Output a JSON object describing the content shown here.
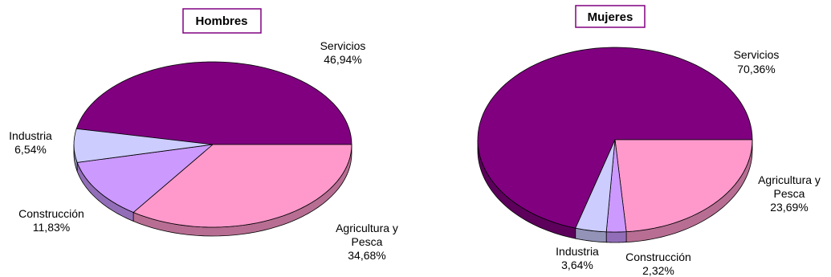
{
  "chart_data": [
    {
      "type": "pie",
      "title": "Hombres",
      "colors": {
        "border": "#800080",
        "outline": "#000000"
      },
      "slices": [
        {
          "name": "Servicios",
          "value": 46.94,
          "label": "46,94%",
          "color": "#800080"
        },
        {
          "name": "Agricultura y Pesca",
          "value": 34.68,
          "label": "34,68%",
          "color": "#ff99cc"
        },
        {
          "name": "Construcción",
          "value": 11.83,
          "label": "11,83%",
          "color": "#cc99ff"
        },
        {
          "name": "Industria",
          "value": 6.54,
          "label": "6,54%",
          "color": "#ccccff"
        }
      ]
    },
    {
      "type": "pie",
      "title": "Mujeres",
      "colors": {
        "border": "#800080",
        "outline": "#000000"
      },
      "slices": [
        {
          "name": "Servicios",
          "value": 70.36,
          "label": "70,36%",
          "color": "#800080"
        },
        {
          "name": "Agricultura y Pesca",
          "value": 23.69,
          "label": "23,69%",
          "color": "#ff99cc"
        },
        {
          "name": "Construcción",
          "value": 2.32,
          "label": "2,32%",
          "color": "#cc99ff"
        },
        {
          "name": "Industria",
          "value": 3.64,
          "label": "3,64%",
          "color": "#ccccff"
        }
      ]
    }
  ]
}
